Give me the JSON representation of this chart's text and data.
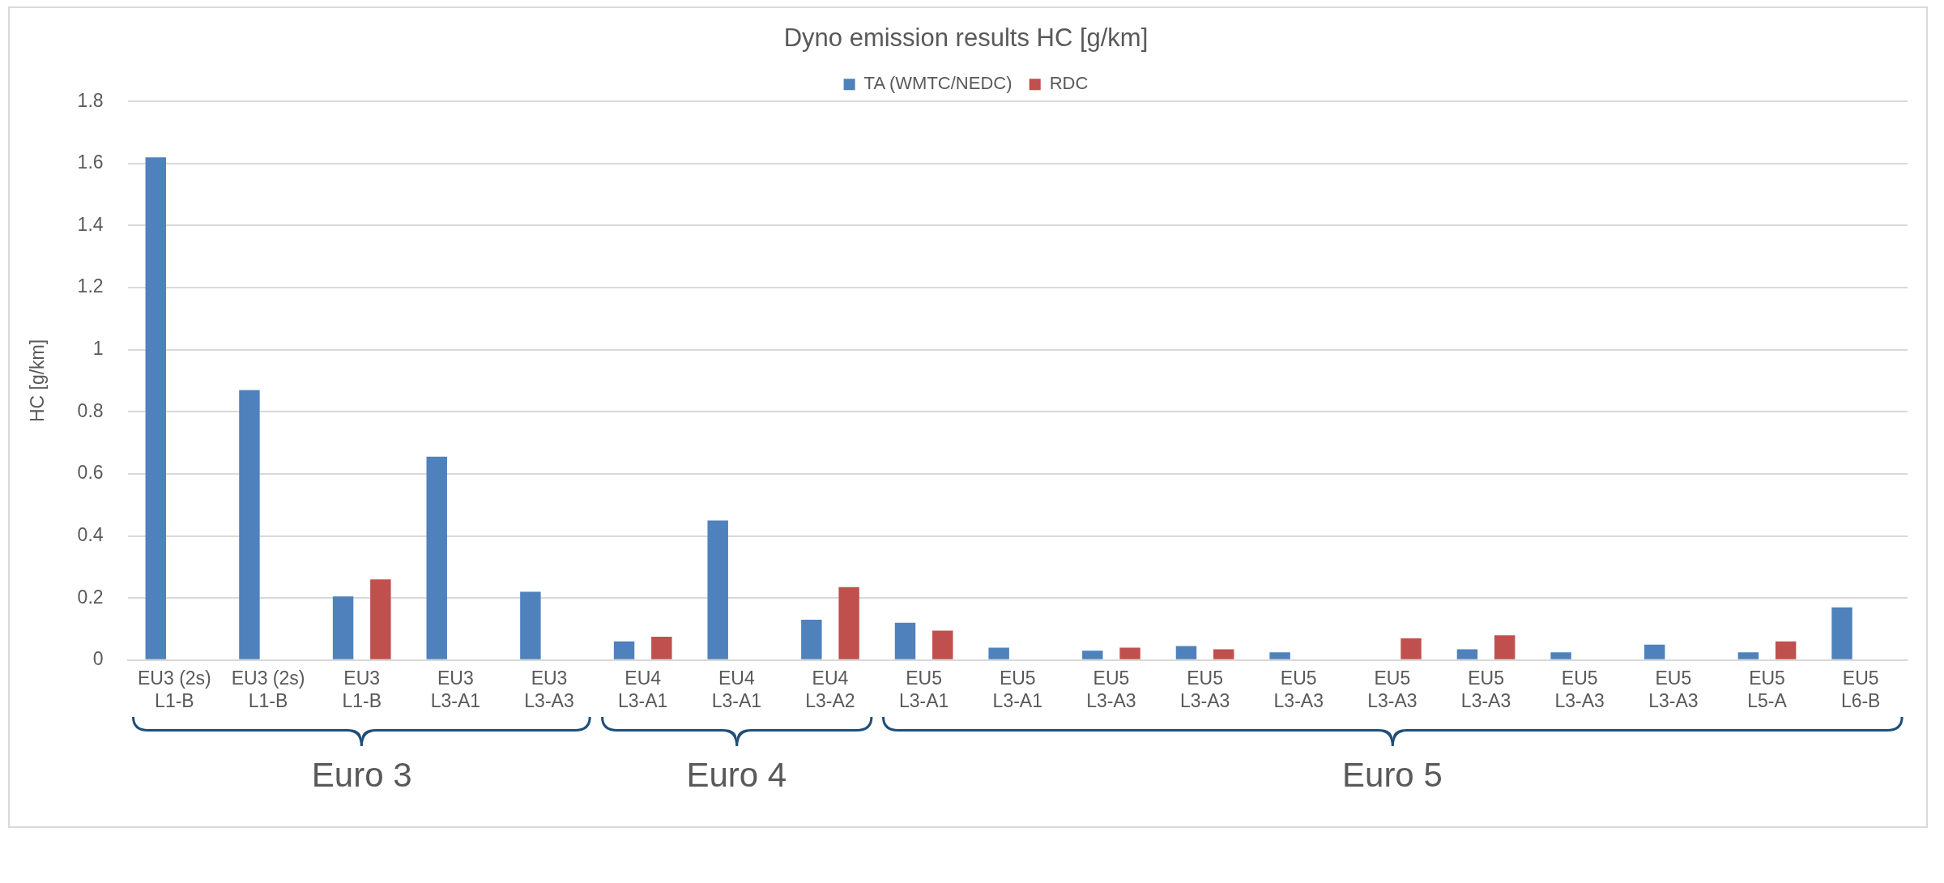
{
  "chart_data": {
    "type": "bar",
    "title": "Dyno emission results HC [g/km]",
    "ylabel": "HC [g/km]",
    "categories": [
      "EU3 (2s)\nL1-B",
      "EU3 (2s)\nL1-B",
      "EU3\nL1-B",
      "EU3\nL3-A1",
      "EU3\nL3-A3",
      "EU4\nL3-A1",
      "EU4\nL3-A1",
      "EU4\nL3-A2",
      "EU5\nL3-A1",
      "EU5\nL3-A1",
      "EU5\nL3-A3",
      "EU5\nL3-A3",
      "EU5\nL3-A3",
      "EU5\nL3-A3",
      "EU5\nL3-A3",
      "EU5\nL3-A3",
      "EU5\nL3-A3",
      "EU5\nL5-A",
      "EU5\nL6-B"
    ],
    "series": [
      {
        "name": "TA (WMTC/NEDC)",
        "color": "#4f81bd",
        "values": [
          1.62,
          0.87,
          0.205,
          0.655,
          0.22,
          0.06,
          0.45,
          0.13,
          0.12,
          0.04,
          0.03,
          0.045,
          0.025,
          null,
          0.035,
          0.025,
          0.05,
          0.025,
          0.17
        ]
      },
      {
        "name": "RDC",
        "color": "#c0504d",
        "values": [
          null,
          null,
          0.26,
          null,
          null,
          0.075,
          null,
          0.235,
          0.095,
          null,
          0.04,
          0.035,
          null,
          0.07,
          0.08,
          null,
          null,
          0.06,
          null
        ]
      }
    ],
    "ylim": [
      0,
      1.8
    ],
    "yticks": [
      0,
      0.2,
      0.4,
      0.6,
      0.8,
      1,
      1.2,
      1.4,
      1.6,
      1.8
    ],
    "grid": "y",
    "legend": "top",
    "annotations": [
      "Euro 3",
      "Euro 4",
      "Euro 5"
    ]
  }
}
